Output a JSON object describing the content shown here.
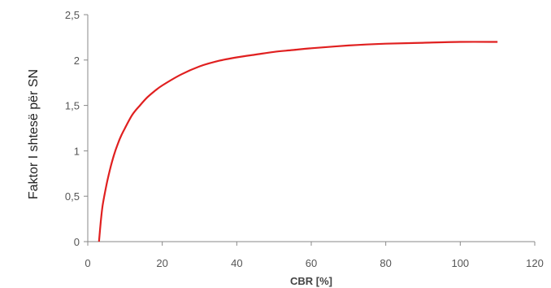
{
  "chart_data": {
    "type": "line",
    "xlabel": "CBR [%]",
    "ylabel": "Faktor I shtesë për  SN",
    "xlim": [
      0,
      120
    ],
    "ylim": [
      0,
      2.5
    ],
    "x_ticks": [
      0,
      20,
      40,
      60,
      80,
      100,
      120
    ],
    "x_tick_labels": [
      "0",
      "20",
      "40",
      "60",
      "80",
      "100",
      "120"
    ],
    "y_ticks": [
      0,
      0.5,
      1,
      1.5,
      2,
      2.5
    ],
    "y_tick_labels": [
      "0",
      "0,5",
      "1",
      "1,5",
      "2",
      "2,5"
    ],
    "grid": false,
    "line_color": "#e02020",
    "axis_color": "#888888",
    "series": [
      {
        "x": [
          3,
          3.5,
          4,
          5,
          6,
          7,
          8,
          9,
          10,
          12,
          14,
          16,
          18,
          20,
          25,
          30,
          35,
          40,
          45,
          50,
          55,
          60,
          70,
          80,
          90,
          100,
          110
        ],
        "y": [
          0,
          0.22,
          0.4,
          0.62,
          0.8,
          0.95,
          1.07,
          1.17,
          1.25,
          1.4,
          1.5,
          1.59,
          1.66,
          1.72,
          1.84,
          1.93,
          1.99,
          2.03,
          2.06,
          2.09,
          2.11,
          2.13,
          2.16,
          2.18,
          2.19,
          2.2,
          2.2
        ]
      }
    ]
  }
}
